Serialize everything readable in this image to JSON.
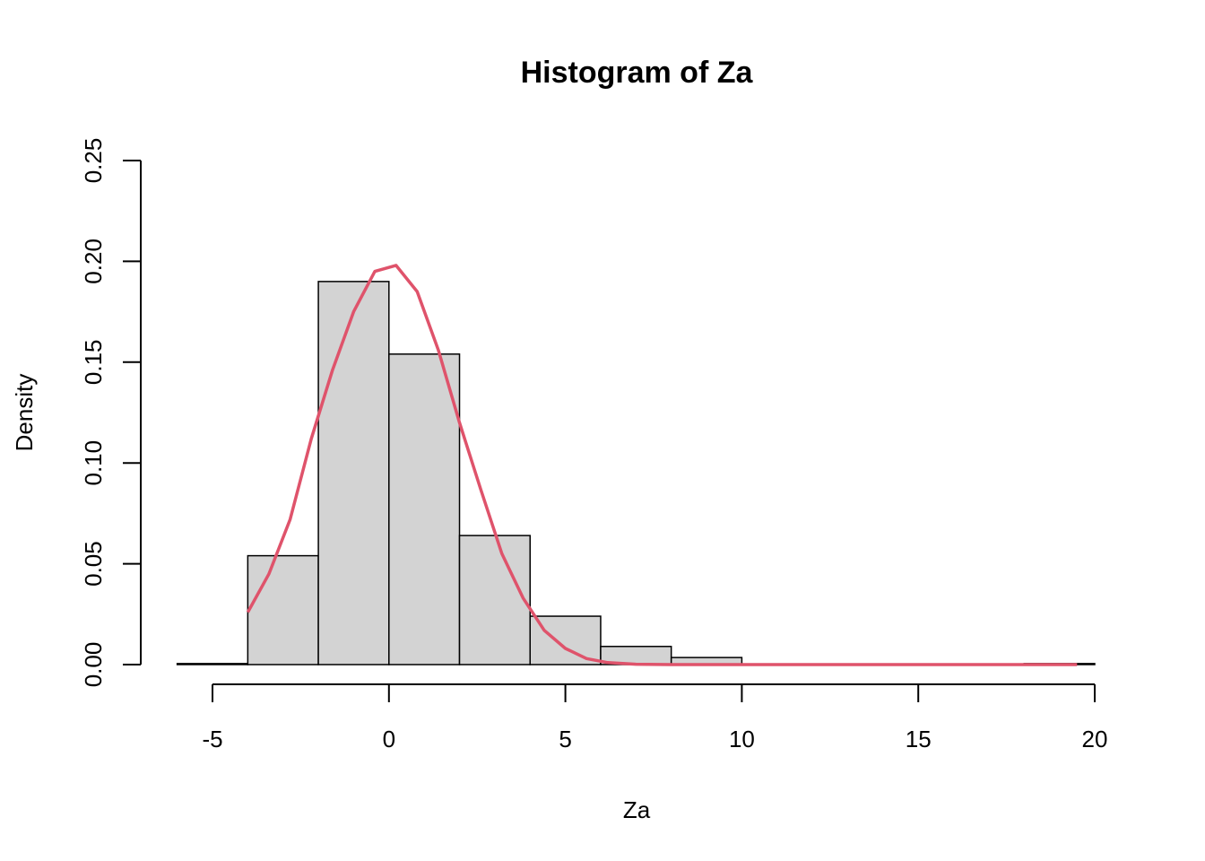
{
  "chart_data": {
    "type": "bar",
    "title": "Histogram of Za",
    "xlabel": "Za",
    "ylabel": "Density",
    "xlim": [
      -6,
      20
    ],
    "ylim": [
      0,
      0.25
    ],
    "x_ticks": [
      "-5",
      "0",
      "5",
      "10",
      "15",
      "20"
    ],
    "y_ticks": [
      "0.00",
      "0.05",
      "0.10",
      "0.15",
      "0.20",
      "0.25"
    ],
    "grid": false,
    "legend": "none",
    "bins": [
      {
        "start": -6,
        "end": -4,
        "density": 0.0005
      },
      {
        "start": -4,
        "end": -2,
        "density": 0.054
      },
      {
        "start": -2,
        "end": 0,
        "density": 0.19
      },
      {
        "start": 0,
        "end": 2,
        "density": 0.154
      },
      {
        "start": 2,
        "end": 4,
        "density": 0.064
      },
      {
        "start": 4,
        "end": 6,
        "density": 0.024
      },
      {
        "start": 6,
        "end": 8,
        "density": 0.009
      },
      {
        "start": 8,
        "end": 10,
        "density": 0.0035
      },
      {
        "start": 10,
        "end": 12,
        "density": 0
      },
      {
        "start": 12,
        "end": 14,
        "density": 0
      },
      {
        "start": 14,
        "end": 16,
        "density": 0
      },
      {
        "start": 16,
        "end": 18,
        "density": 0
      },
      {
        "start": 18,
        "end": 20,
        "density": 0.0005
      }
    ],
    "bar_fill": "#d3d3d3",
    "bar_stroke": "#000000",
    "density_curve": {
      "color": "#df536b",
      "x": [
        -4,
        -3.4,
        -2.8,
        -2.2,
        -1.6,
        -1.0,
        -0.4,
        0.2,
        0.8,
        1.4,
        2.0,
        2.6,
        3.2,
        3.8,
        4.4,
        5.0,
        5.6,
        6.2,
        7.0,
        8.0,
        10.0,
        14.0,
        19.5
      ],
      "y": [
        0.026,
        0.045,
        0.072,
        0.112,
        0.146,
        0.175,
        0.195,
        0.198,
        0.185,
        0.156,
        0.12,
        0.087,
        0.055,
        0.033,
        0.017,
        0.008,
        0.003,
        0.001,
        0.0002,
        0,
        0,
        0,
        0
      ]
    }
  }
}
